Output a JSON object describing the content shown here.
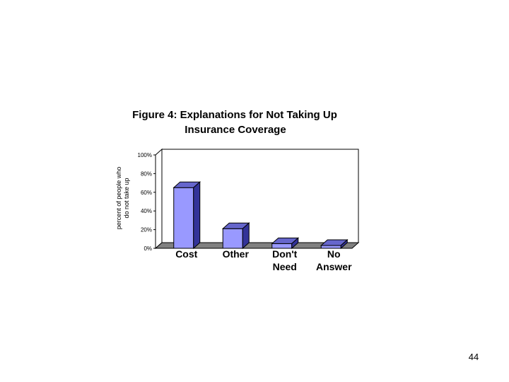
{
  "slide": {
    "page_number": "44"
  },
  "chart_data": {
    "type": "bar",
    "title_lines": [
      "Figure 4: Explanations for Not Taking Up",
      "Insurance Coverage"
    ],
    "ylabel_lines": [
      "percent of people who",
      "do not take up"
    ],
    "xlabel": "",
    "categories": [
      {
        "lines": [
          "Cost"
        ]
      },
      {
        "lines": [
          "Other"
        ]
      },
      {
        "lines": [
          "Don't",
          "Need"
        ]
      },
      {
        "lines": [
          "No",
          "Answer"
        ]
      }
    ],
    "values": [
      65,
      21,
      5,
      3
    ],
    "ylim": [
      0,
      100
    ],
    "yticks": [
      {
        "value": 0,
        "label": "0%"
      },
      {
        "value": 20,
        "label": "20%"
      },
      {
        "value": 40,
        "label": "40%"
      },
      {
        "value": 60,
        "label": "60%"
      },
      {
        "value": 80,
        "label": "80%"
      },
      {
        "value": 100,
        "label": "100%"
      }
    ],
    "grid": true,
    "bar_style": "3d",
    "colors": {
      "bar_front": "#9999ff",
      "bar_top": "#6666cc",
      "bar_side": "#333399",
      "floor": "#808080"
    }
  }
}
